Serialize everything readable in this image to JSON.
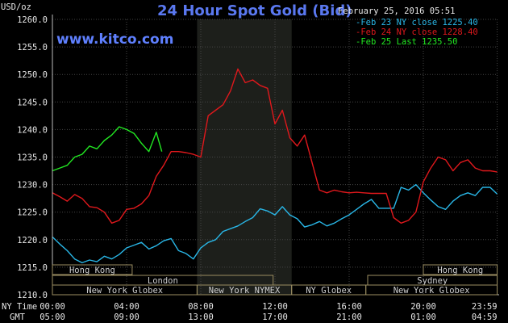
{
  "chart_data": {
    "type": "line",
    "title": "24 Hour Spot Gold (Bid)",
    "source": "www.kitco.com",
    "datetime": "February 25, 2016 05:51",
    "ylabel": "USD/oz",
    "ylim": [
      1210,
      1260
    ],
    "yticks": [
      "1260.0",
      "1255.0",
      "1250.0",
      "1245.0",
      "1240.0",
      "1235.0",
      "1230.0",
      "1225.0",
      "1220.0",
      "1215.0",
      "1210.0"
    ],
    "ny_time_label": "NY Time",
    "gmt_label": "GMT",
    "ny_ticks": [
      "00:00",
      "04:00",
      "08:00",
      "12:00",
      "16:00",
      "20:00",
      "23:59"
    ],
    "gmt_ticks": [
      "05:00",
      "09:00",
      "13:00",
      "17:00",
      "21:00",
      "01:00",
      "04:59"
    ],
    "x_unit": "hours (NY time)",
    "x_range": [
      0,
      24
    ],
    "legend": [
      {
        "label": "Feb 23 NY close 1225.40",
        "color": "#29b6e6"
      },
      {
        "label": "Feb 24 NY close 1228.40",
        "color": "#e0181c"
      },
      {
        "label": "Feb 25 Last 1235.50",
        "color": "#22e822"
      }
    ],
    "sessions": [
      {
        "label": "Hong Kong",
        "start": 0,
        "end": 4.3,
        "row": 1
      },
      {
        "label": "Hong Kong",
        "start": 20,
        "end": 23.98,
        "row": 1
      },
      {
        "label": "Sydney",
        "start": 17,
        "end": 23.98,
        "row": 2
      },
      {
        "label": "London",
        "start": 0,
        "end": 11.9,
        "row": 2
      },
      {
        "label": "New York Globex",
        "start": 0,
        "end": 7.8,
        "row": 3
      },
      {
        "label": "New York NYMEX",
        "start": 7.8,
        "end": 12.9,
        "row": 3
      },
      {
        "label": "NY Globex",
        "start": 12.9,
        "end": 16.9,
        "row": 3
      },
      {
        "label": "New York Globex",
        "start": 16.9,
        "end": 23.98,
        "row": 3
      }
    ],
    "nymex_shade": [
      7.8,
      12.9
    ],
    "series": [
      {
        "color": "#29b6e6",
        "points": [
          [
            0,
            1220.5
          ],
          [
            0.4,
            1219.2
          ],
          [
            0.8,
            1218.0
          ],
          [
            1.2,
            1216.5
          ],
          [
            1.6,
            1215.8
          ],
          [
            2.0,
            1216.3
          ],
          [
            2.4,
            1216.0
          ],
          [
            2.8,
            1217.0
          ],
          [
            3.2,
            1216.5
          ],
          [
            3.6,
            1217.3
          ],
          [
            4.0,
            1218.5
          ],
          [
            4.4,
            1219.0
          ],
          [
            4.8,
            1219.5
          ],
          [
            5.2,
            1218.3
          ],
          [
            5.6,
            1218.9
          ],
          [
            6.0,
            1219.8
          ],
          [
            6.4,
            1220.2
          ],
          [
            6.8,
            1218.0
          ],
          [
            7.2,
            1217.5
          ],
          [
            7.6,
            1216.5
          ],
          [
            8.0,
            1218.5
          ],
          [
            8.4,
            1219.5
          ],
          [
            8.8,
            1220.0
          ],
          [
            9.2,
            1221.5
          ],
          [
            9.6,
            1222.0
          ],
          [
            10.0,
            1222.5
          ],
          [
            10.4,
            1223.3
          ],
          [
            10.8,
            1224.0
          ],
          [
            11.2,
            1225.6
          ],
          [
            11.6,
            1225.2
          ],
          [
            12.0,
            1224.5
          ],
          [
            12.4,
            1226.0
          ],
          [
            12.8,
            1224.5
          ],
          [
            13.2,
            1223.8
          ],
          [
            13.6,
            1222.3
          ],
          [
            14.0,
            1222.7
          ],
          [
            14.4,
            1223.3
          ],
          [
            14.8,
            1222.5
          ],
          [
            15.2,
            1223.0
          ],
          [
            15.6,
            1223.8
          ],
          [
            16.0,
            1224.5
          ],
          [
            16.4,
            1225.5
          ],
          [
            16.8,
            1226.5
          ],
          [
            17.2,
            1227.3
          ],
          [
            17.6,
            1225.7
          ],
          [
            18.0,
            1225.7
          ],
          [
            18.4,
            1225.7
          ],
          [
            18.8,
            1229.5
          ],
          [
            19.2,
            1229.0
          ],
          [
            19.6,
            1230.0
          ],
          [
            20.0,
            1228.5
          ],
          [
            20.4,
            1227.2
          ],
          [
            20.8,
            1226.0
          ],
          [
            21.2,
            1225.5
          ],
          [
            21.6,
            1227.0
          ],
          [
            22.0,
            1228.0
          ],
          [
            22.4,
            1228.5
          ],
          [
            22.8,
            1228.0
          ],
          [
            23.2,
            1229.5
          ],
          [
            23.6,
            1229.5
          ],
          [
            23.98,
            1228.3
          ]
        ]
      },
      {
        "color": "#e0181c",
        "points": [
          [
            0,
            1228.5
          ],
          [
            0.4,
            1227.8
          ],
          [
            0.8,
            1227.0
          ],
          [
            1.2,
            1228.2
          ],
          [
            1.6,
            1227.5
          ],
          [
            2.0,
            1226.0
          ],
          [
            2.4,
            1225.8
          ],
          [
            2.8,
            1225.0
          ],
          [
            3.2,
            1223.0
          ],
          [
            3.6,
            1223.5
          ],
          [
            4.0,
            1225.5
          ],
          [
            4.4,
            1225.7
          ],
          [
            4.8,
            1226.5
          ],
          [
            5.2,
            1228.0
          ],
          [
            5.6,
            1231.5
          ],
          [
            6.0,
            1233.5
          ],
          [
            6.4,
            1236.0
          ],
          [
            6.8,
            1236.0
          ],
          [
            7.2,
            1235.8
          ],
          [
            7.6,
            1235.5
          ],
          [
            8.0,
            1235.0
          ],
          [
            8.4,
            1242.5
          ],
          [
            8.8,
            1243.5
          ],
          [
            9.2,
            1244.5
          ],
          [
            9.6,
            1247.0
          ],
          [
            10.0,
            1251.0
          ],
          [
            10.4,
            1248.5
          ],
          [
            10.8,
            1249.0
          ],
          [
            11.2,
            1248.0
          ],
          [
            11.6,
            1247.5
          ],
          [
            12.0,
            1241.0
          ],
          [
            12.4,
            1243.5
          ],
          [
            12.8,
            1238.5
          ],
          [
            13.2,
            1237.0
          ],
          [
            13.6,
            1239.0
          ],
          [
            14.0,
            1234.0
          ],
          [
            14.4,
            1229.0
          ],
          [
            14.8,
            1228.5
          ],
          [
            15.2,
            1229.0
          ],
          [
            15.6,
            1228.7
          ],
          [
            16.0,
            1228.5
          ],
          [
            16.4,
            1228.6
          ],
          [
            16.8,
            1228.5
          ],
          [
            17.2,
            1228.4
          ],
          [
            17.6,
            1228.4
          ],
          [
            18.0,
            1228.4
          ],
          [
            18.4,
            1224.0
          ],
          [
            18.8,
            1223.0
          ],
          [
            19.2,
            1223.5
          ],
          [
            19.6,
            1225.0
          ],
          [
            20.0,
            1230.5
          ],
          [
            20.4,
            1233.0
          ],
          [
            20.8,
            1235.0
          ],
          [
            21.2,
            1234.5
          ],
          [
            21.6,
            1232.5
          ],
          [
            22.0,
            1234.0
          ],
          [
            22.4,
            1234.5
          ],
          [
            22.8,
            1233.0
          ],
          [
            23.2,
            1232.5
          ],
          [
            23.6,
            1232.5
          ],
          [
            23.98,
            1232.3
          ]
        ]
      },
      {
        "color": "#22e822",
        "points": [
          [
            0,
            1232.5
          ],
          [
            0.4,
            1233.0
          ],
          [
            0.8,
            1233.5
          ],
          [
            1.2,
            1235.0
          ],
          [
            1.6,
            1235.5
          ],
          [
            2.0,
            1237.0
          ],
          [
            2.4,
            1236.5
          ],
          [
            2.8,
            1238.0
          ],
          [
            3.2,
            1239.0
          ],
          [
            3.6,
            1240.5
          ],
          [
            4.0,
            1240.0
          ],
          [
            4.4,
            1239.3
          ],
          [
            4.8,
            1237.5
          ],
          [
            5.2,
            1236.0
          ],
          [
            5.6,
            1239.5
          ],
          [
            5.9,
            1236.0
          ]
        ]
      }
    ]
  }
}
